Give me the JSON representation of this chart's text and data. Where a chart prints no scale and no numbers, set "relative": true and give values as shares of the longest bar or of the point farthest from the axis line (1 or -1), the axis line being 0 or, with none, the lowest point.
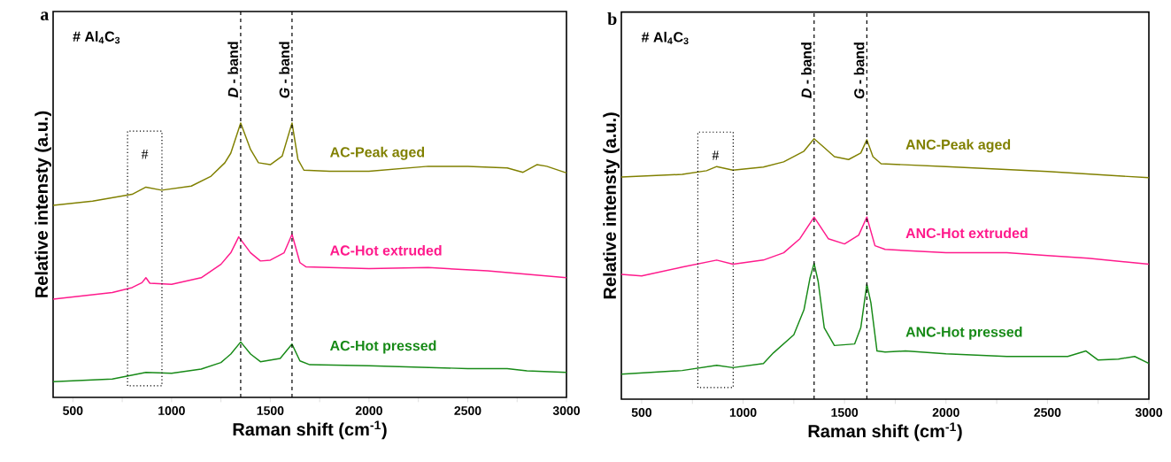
{
  "chart_data": [
    {
      "type": "line",
      "title": "a",
      "xlabel": "Raman shift (cm$^{-1}$)",
      "ylabel": "Relative intensty (a.u.)",
      "relative": true,
      "xlim": [
        400,
        3000
      ],
      "xticks": [
        500,
        {
          "value": 750,
          "label": null
        },
        1000,
        {
          "value": 1250,
          "label": null
        },
        1500,
        {
          "value": 1750,
          "label": null
        },
        2000,
        {
          "value": 2250,
          "label": null
        },
        2500,
        {
          "value": 2750,
          "label": null
        },
        3000
      ],
      "annotations": [
        "# Al$_{4}$C$_{3}$",
        "#"
      ],
      "ref_lines": [
        {
          "axis": "x",
          "value": 1350,
          "label": "*D* - band",
          "line_style": "dashed"
        },
        {
          "axis": "x",
          "value": 1610,
          "label": "*G* - band",
          "line_style": "dashed"
        }
      ],
      "series": [
        {
          "name": "AC-Peak aged",
          "color": "#808000",
          "x": [
            400,
            600,
            800,
            870,
            950,
            1100,
            1200,
            1270,
            1300,
            1350,
            1400,
            1440,
            1500,
            1560,
            1610,
            1640,
            1670,
            1800,
            2000,
            2300,
            2500,
            2700,
            2780,
            2850,
            2900,
            3000
          ],
          "values": [
            0.7,
            0.715,
            0.74,
            0.766,
            0.755,
            0.77,
            0.806,
            0.855,
            0.89,
            1.0,
            0.903,
            0.855,
            0.848,
            0.879,
            1.0,
            0.867,
            0.828,
            0.824,
            0.824,
            0.842,
            0.842,
            0.836,
            0.82,
            0.848,
            0.842,
            0.818
          ]
        },
        {
          "name": "AC-Hot extruded",
          "color": "#ff1a8c",
          "x": [
            400,
            700,
            800,
            850,
            870,
            890,
            1000,
            1150,
            1250,
            1300,
            1340,
            1400,
            1450,
            1500,
            1570,
            1610,
            1650,
            1680,
            2000,
            2300,
            2600,
            3000
          ],
          "values": [
            0.358,
            0.382,
            0.4,
            0.418,
            0.436,
            0.416,
            0.412,
            0.436,
            0.485,
            0.527,
            0.585,
            0.527,
            0.497,
            0.5,
            0.527,
            0.594,
            0.491,
            0.476,
            0.469,
            0.473,
            0.461,
            0.436
          ]
        },
        {
          "name": "AC-Hot pressed",
          "color": "#178a17",
          "x": [
            400,
            700,
            870,
            1000,
            1150,
            1250,
            1300,
            1350,
            1400,
            1450,
            1550,
            1610,
            1650,
            1700,
            2000,
            2500,
            2700,
            2800,
            3000
          ],
          "values": [
            0.057,
            0.067,
            0.091,
            0.088,
            0.103,
            0.127,
            0.158,
            0.202,
            0.158,
            0.13,
            0.142,
            0.194,
            0.133,
            0.119,
            0.115,
            0.105,
            0.105,
            0.097,
            0.091
          ]
        }
      ]
    },
    {
      "type": "line",
      "title": "b",
      "xlabel": "Raman shift (cm$^{-1}$)",
      "ylabel": "Relative intensty (a.u.)",
      "relative": true,
      "xlim": [
        400,
        3000
      ],
      "xticks": [
        500,
        {
          "value": 750,
          "label": null
        },
        1000,
        {
          "value": 1250,
          "label": null
        },
        1500,
        {
          "value": 1750,
          "label": null
        },
        2000,
        {
          "value": 2250,
          "label": null
        },
        2500,
        {
          "value": 2750,
          "label": null
        },
        3000
      ],
      "annotations": [
        "# Al$_{4}$C$_{3}$",
        "#"
      ],
      "ref_lines": [
        {
          "axis": "x",
          "value": 1350,
          "label": "*D* - band",
          "line_style": "dashed"
        },
        {
          "axis": "x",
          "value": 1610,
          "label": "*G* - band",
          "line_style": "dashed"
        }
      ],
      "series": [
        {
          "name": "ANC-Peak aged",
          "color": "#808000",
          "x": [
            400,
            700,
            820,
            870,
            950,
            1100,
            1200,
            1300,
            1350,
            1400,
            1450,
            1520,
            1580,
            1610,
            1640,
            1680,
            2000,
            2500,
            3000
          ],
          "values": [
            0.853,
            0.863,
            0.877,
            0.893,
            0.879,
            0.891,
            0.911,
            0.952,
            1.0,
            0.966,
            0.931,
            0.92,
            0.945,
            0.996,
            0.931,
            0.904,
            0.893,
            0.874,
            0.85
          ]
        },
        {
          "name": "ANC-Hot extruded",
          "color": "#ff1a8c",
          "x": [
            400,
            500,
            700,
            870,
            950,
            1100,
            1200,
            1280,
            1350,
            1420,
            1500,
            1570,
            1610,
            1650,
            1700,
            2000,
            2300,
            2500,
            2700,
            3000
          ],
          "values": [
            0.479,
            0.473,
            0.507,
            0.534,
            0.518,
            0.534,
            0.562,
            0.616,
            0.699,
            0.616,
            0.596,
            0.63,
            0.699,
            0.589,
            0.575,
            0.562,
            0.562,
            0.551,
            0.541,
            0.518
          ]
        },
        {
          "name": "ANC-Hot pressed",
          "color": "#178a17",
          "x": [
            400,
            700,
            870,
            950,
            1100,
            1150,
            1250,
            1300,
            1330,
            1350,
            1370,
            1400,
            1450,
            1550,
            1580,
            1610,
            1630,
            1660,
            1700,
            1800,
            2000,
            2300,
            2600,
            2690,
            2750,
            2850,
            2930,
            3000
          ],
          "values": [
            0.096,
            0.11,
            0.13,
            0.121,
            0.137,
            0.178,
            0.247,
            0.343,
            0.466,
            0.521,
            0.452,
            0.274,
            0.206,
            0.212,
            0.274,
            0.441,
            0.37,
            0.185,
            0.181,
            0.185,
            0.174,
            0.164,
            0.164,
            0.185,
            0.15,
            0.154,
            0.164,
            0.137
          ]
        }
      ]
    }
  ]
}
